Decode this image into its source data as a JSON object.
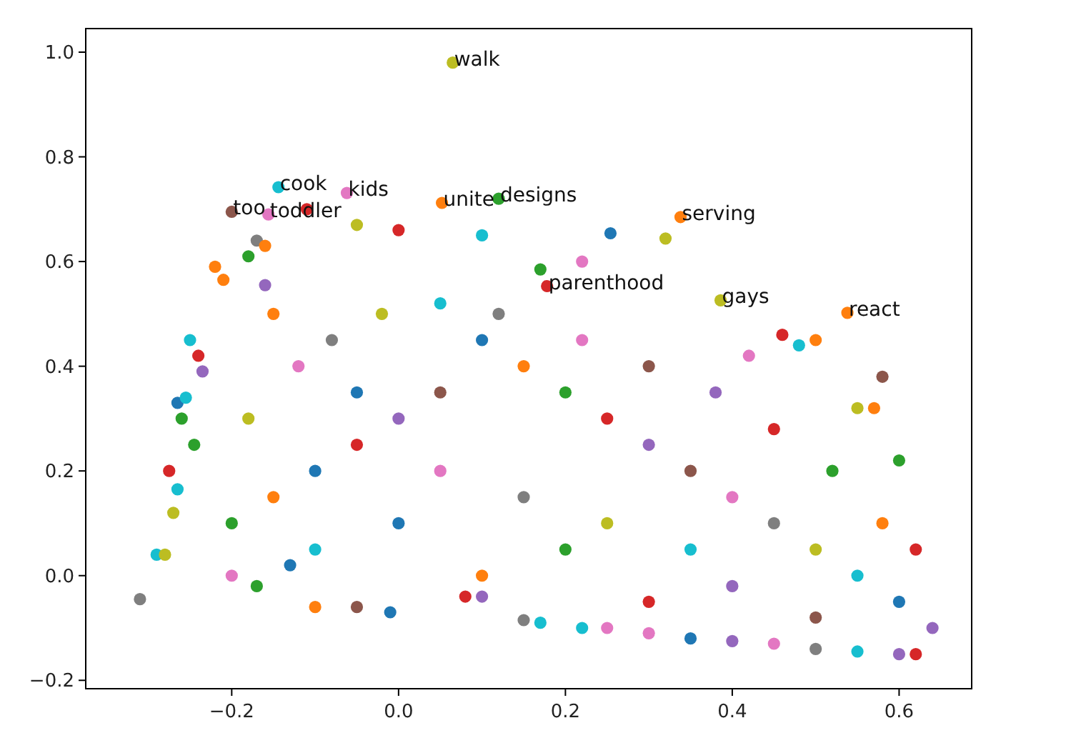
{
  "chart_data": {
    "type": "scatter",
    "marker": "circle",
    "xlim": [
      -0.375,
      0.687
    ],
    "ylim": [
      -0.216,
      1.045
    ],
    "xticks": [
      {
        "value": -0.2,
        "label": "−0.2"
      },
      {
        "value": 0,
        "label": "0.0"
      },
      0.2,
      0.4,
      0.6
    ],
    "yticks": [
      {
        "value": -0.2,
        "label": "−0.2"
      },
      {
        "value": 0,
        "label": "0.0"
      },
      0.2,
      0.4,
      0.6,
      0.8,
      {
        "value": 1,
        "label": "1.0"
      }
    ],
    "x": [
      -0.31,
      -0.29,
      -0.28,
      -0.27,
      -0.265,
      -0.275,
      -0.26,
      -0.265,
      -0.255,
      -0.245,
      -0.24,
      -0.235,
      -0.25,
      -0.22,
      -0.21,
      -0.2,
      -0.18,
      -0.16,
      -0.17,
      -0.16,
      -0.144,
      -0.062,
      -0.11,
      -0.05,
      0.0,
      0.052,
      0.12,
      0.1,
      0.17,
      0.254,
      0.32,
      0.338,
      0.178,
      0.386,
      0.46,
      0.48,
      0.5,
      0.538,
      0.55,
      0.57,
      0.065,
      -0.156,
      0.22,
      -0.1,
      -0.05,
      -0.01,
      0.15,
      0.17,
      0.22,
      0.25,
      0.3,
      0.35,
      0.4,
      0.45,
      0.5,
      0.55,
      0.6,
      0.62,
      0.08,
      0.1,
      -0.2,
      -0.17,
      -0.13,
      -0.2,
      -0.15,
      -0.1,
      -0.05,
      0.0,
      0.05,
      -0.12,
      -0.08,
      -0.02,
      0.05,
      0.1,
      0.15,
      0.2,
      0.25,
      0.3,
      0.35,
      0.4,
      0.45,
      0.5,
      0.55,
      0.6,
      0.58,
      0.52,
      0.45,
      0.38,
      0.3,
      0.22,
      0.12,
      -0.18,
      -0.1,
      0.0,
      0.1,
      0.2,
      0.3,
      0.4,
      0.5,
      0.05,
      0.15,
      0.25,
      0.35,
      -0.05,
      -0.15,
      0.6,
      0.62,
      0.64,
      0.58,
      0.42
    ],
    "values": [
      -0.045,
      0.04,
      0.04,
      0.12,
      0.165,
      0.2,
      0.3,
      0.33,
      0.34,
      0.25,
      0.42,
      0.39,
      0.45,
      0.59,
      0.565,
      0.695,
      0.61,
      0.555,
      0.64,
      0.63,
      0.742,
      0.731,
      0.7,
      0.67,
      0.66,
      0.712,
      0.72,
      0.65,
      0.585,
      0.654,
      0.644,
      0.685,
      0.553,
      0.526,
      0.46,
      0.44,
      0.45,
      0.502,
      0.32,
      0.32,
      0.98,
      0.69,
      0.6,
      -0.06,
      -0.06,
      -0.07,
      -0.085,
      -0.09,
      -0.1,
      -0.1,
      -0.11,
      -0.12,
      -0.125,
      -0.13,
      -0.14,
      -0.145,
      -0.15,
      -0.15,
      -0.04,
      -0.04,
      0.0,
      -0.02,
      0.02,
      0.1,
      0.15,
      0.2,
      0.25,
      0.3,
      0.35,
      0.4,
      0.45,
      0.5,
      0.52,
      0.45,
      0.4,
      0.35,
      0.3,
      0.25,
      0.2,
      0.15,
      0.1,
      0.05,
      0.0,
      -0.05,
      0.1,
      0.2,
      0.28,
      0.35,
      0.4,
      0.45,
      0.5,
      0.3,
      0.05,
      0.1,
      0.0,
      0.05,
      -0.05,
      -0.02,
      -0.08,
      0.2,
      0.15,
      0.1,
      0.05,
      0.35,
      0.5,
      0.22,
      0.05,
      -0.1,
      0.38,
      0.42
    ],
    "colors": [
      "#7f7f7f",
      "#17becf",
      "#bcbd22",
      "#bcbd22",
      "#17becf",
      "#d62728",
      "#2ca02c",
      "#1f77b4",
      "#17becf",
      "#2ca02c",
      "#d62728",
      "#9467bd",
      "#17becf",
      "#ff7f0e",
      "#ff7f0e",
      "#8c564b",
      "#2ca02c",
      "#9467bd",
      "#7f7f7f",
      "#ff7f0e",
      "#17becf",
      "#e377c2",
      "#d62728",
      "#bcbd22",
      "#d62728",
      "#ff7f0e",
      "#2ca02c",
      "#17becf",
      "#2ca02c",
      "#1f77b4",
      "#bcbd22",
      "#ff7f0e",
      "#d62728",
      "#bcbd22",
      "#d62728",
      "#17becf",
      "#ff7f0e",
      "#ff7f0e",
      "#bcbd22",
      "#ff7f0e",
      "#bcbd22",
      "#e377c2",
      "#e377c2",
      "#ff7f0e",
      "#8c564b",
      "#1f77b4",
      "#7f7f7f",
      "#17becf",
      "#17becf",
      "#e377c2",
      "#e377c2",
      "#1f77b4",
      "#9467bd",
      "#e377c2",
      "#7f7f7f",
      "#17becf",
      "#9467bd",
      "#d62728",
      "#d62728",
      "#9467bd",
      "#e377c2",
      "#2ca02c",
      "#1f77b4",
      "#2ca02c",
      "#ff7f0e",
      "#1f77b4",
      "#d62728",
      "#9467bd",
      "#8c564b",
      "#e377c2",
      "#7f7f7f",
      "#bcbd22",
      "#17becf",
      "#1f77b4",
      "#ff7f0e",
      "#2ca02c",
      "#d62728",
      "#9467bd",
      "#8c564b",
      "#e377c2",
      "#7f7f7f",
      "#bcbd22",
      "#17becf",
      "#1f77b4",
      "#ff7f0e",
      "#2ca02c",
      "#d62728",
      "#9467bd",
      "#8c564b",
      "#e377c2",
      "#7f7f7f",
      "#bcbd22",
      "#17becf",
      "#1f77b4",
      "#ff7f0e",
      "#2ca02c",
      "#d62728",
      "#9467bd",
      "#8c564b",
      "#e377c2",
      "#7f7f7f",
      "#bcbd22",
      "#17becf",
      "#1f77b4",
      "#ff7f0e",
      "#2ca02c",
      "#d62728",
      "#9467bd",
      "#8c564b",
      "#e377c2"
    ],
    "annotations": [
      {
        "text": "walk",
        "x": 0.065,
        "y": 0.98
      },
      {
        "text": "cook",
        "x": -0.144,
        "y": 0.742
      },
      {
        "text": "kids",
        "x": -0.062,
        "y": 0.731
      },
      {
        "text": "unite",
        "x": 0.052,
        "y": 0.712
      },
      {
        "text": "designs",
        "x": 0.12,
        "y": 0.72
      },
      {
        "text": "too",
        "x": -0.2,
        "y": 0.695
      },
      {
        "text": "toddler",
        "x": -0.156,
        "y": 0.69
      },
      {
        "text": "serving",
        "x": 0.338,
        "y": 0.685
      },
      {
        "text": "parenthood",
        "x": 0.178,
        "y": 0.553
      },
      {
        "text": "gays",
        "x": 0.386,
        "y": 0.526
      },
      {
        "text": "react",
        "x": 0.538,
        "y": 0.502
      }
    ]
  }
}
